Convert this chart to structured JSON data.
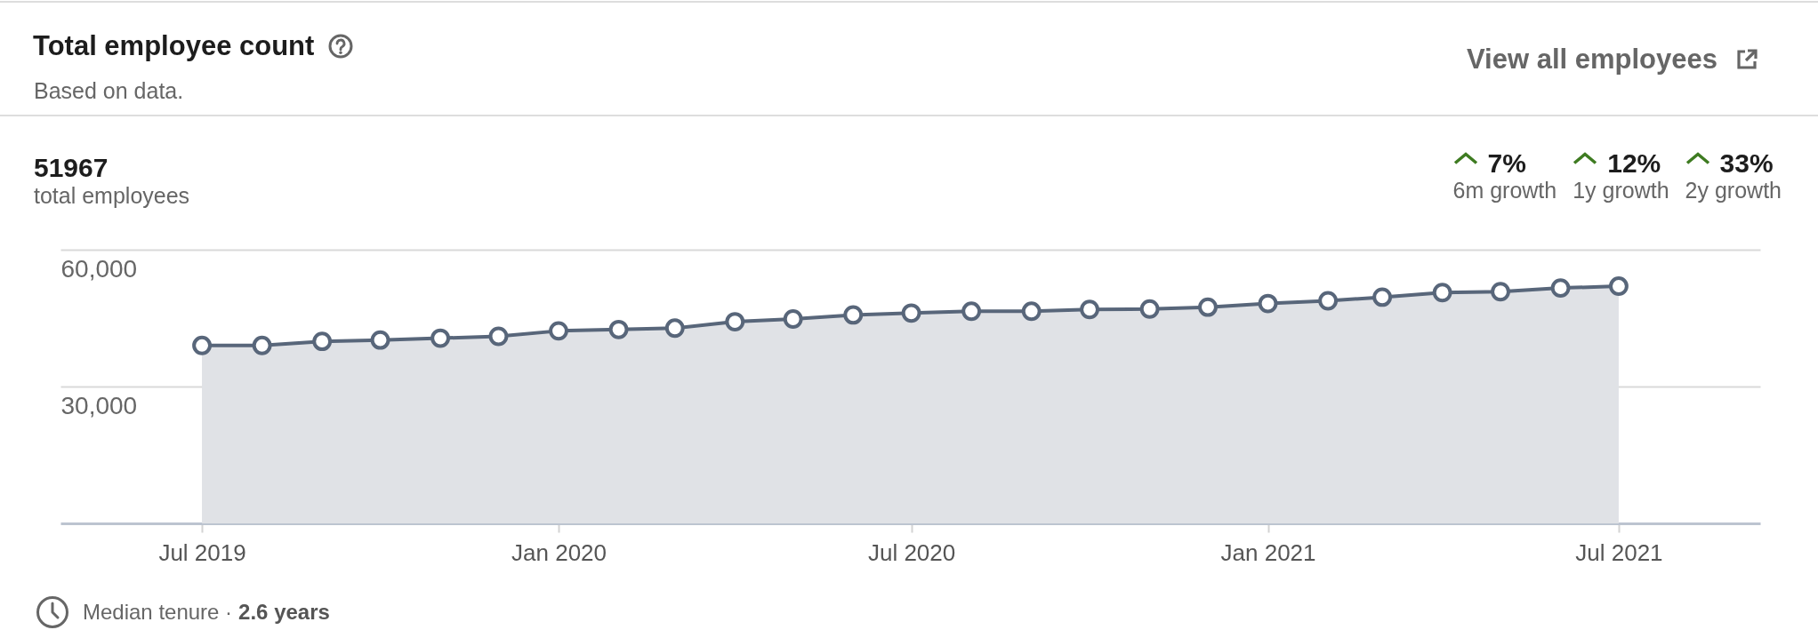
{
  "chart_data": {
    "type": "area",
    "title": "Total employee count",
    "subtitle": "Based on data.",
    "x": [
      "2019-07",
      "2019-08",
      "2019-09",
      "2019-10",
      "2019-11",
      "2019-12",
      "2020-01",
      "2020-02",
      "2020-03",
      "2020-04",
      "2020-05",
      "2020-06",
      "2020-07",
      "2020-08",
      "2020-09",
      "2020-10",
      "2020-11",
      "2020-12",
      "2021-01",
      "2021-02",
      "2021-03",
      "2021-04",
      "2021-05",
      "2021-06",
      "2021-07"
    ],
    "series": [
      {
        "color": "#58667a",
        "values": [
          39000,
          39000,
          39900,
          40200,
          40600,
          41000,
          42200,
          42500,
          42800,
          44200,
          44800,
          45700,
          46100,
          46500,
          46500,
          46900,
          47000,
          47400,
          48200,
          48800,
          49600,
          50600,
          50800,
          51600,
          52000
        ]
      }
    ],
    "xlim": [
      "2019-04-19",
      "2021-09-12"
    ],
    "xticks": [
      {
        "value": "2019-07",
        "label": "Jul 2019"
      },
      {
        "value": "2020-01",
        "label": "Jan 2020"
      },
      {
        "value": "2020-07",
        "label": "Jul 2020"
      },
      {
        "value": "2021-01",
        "label": "Jan 2021"
      },
      {
        "value": "2021-07",
        "label": "Jul 2021"
      }
    ],
    "ylim": [
      0,
      60000
    ],
    "yticks": [
      {
        "value": 30000,
        "label": "30,000"
      },
      {
        "value": 60000,
        "label": "60,000"
      }
    ],
    "grid": "y",
    "marker": "circle",
    "line_style": "solid",
    "annotations": [
      "View all employees",
      "51967",
      "total employees",
      "7%",
      "6m growth",
      "12%",
      "1y growth",
      "33%",
      "2y growth",
      "Median tenure ·",
      "2.6 years"
    ]
  }
}
